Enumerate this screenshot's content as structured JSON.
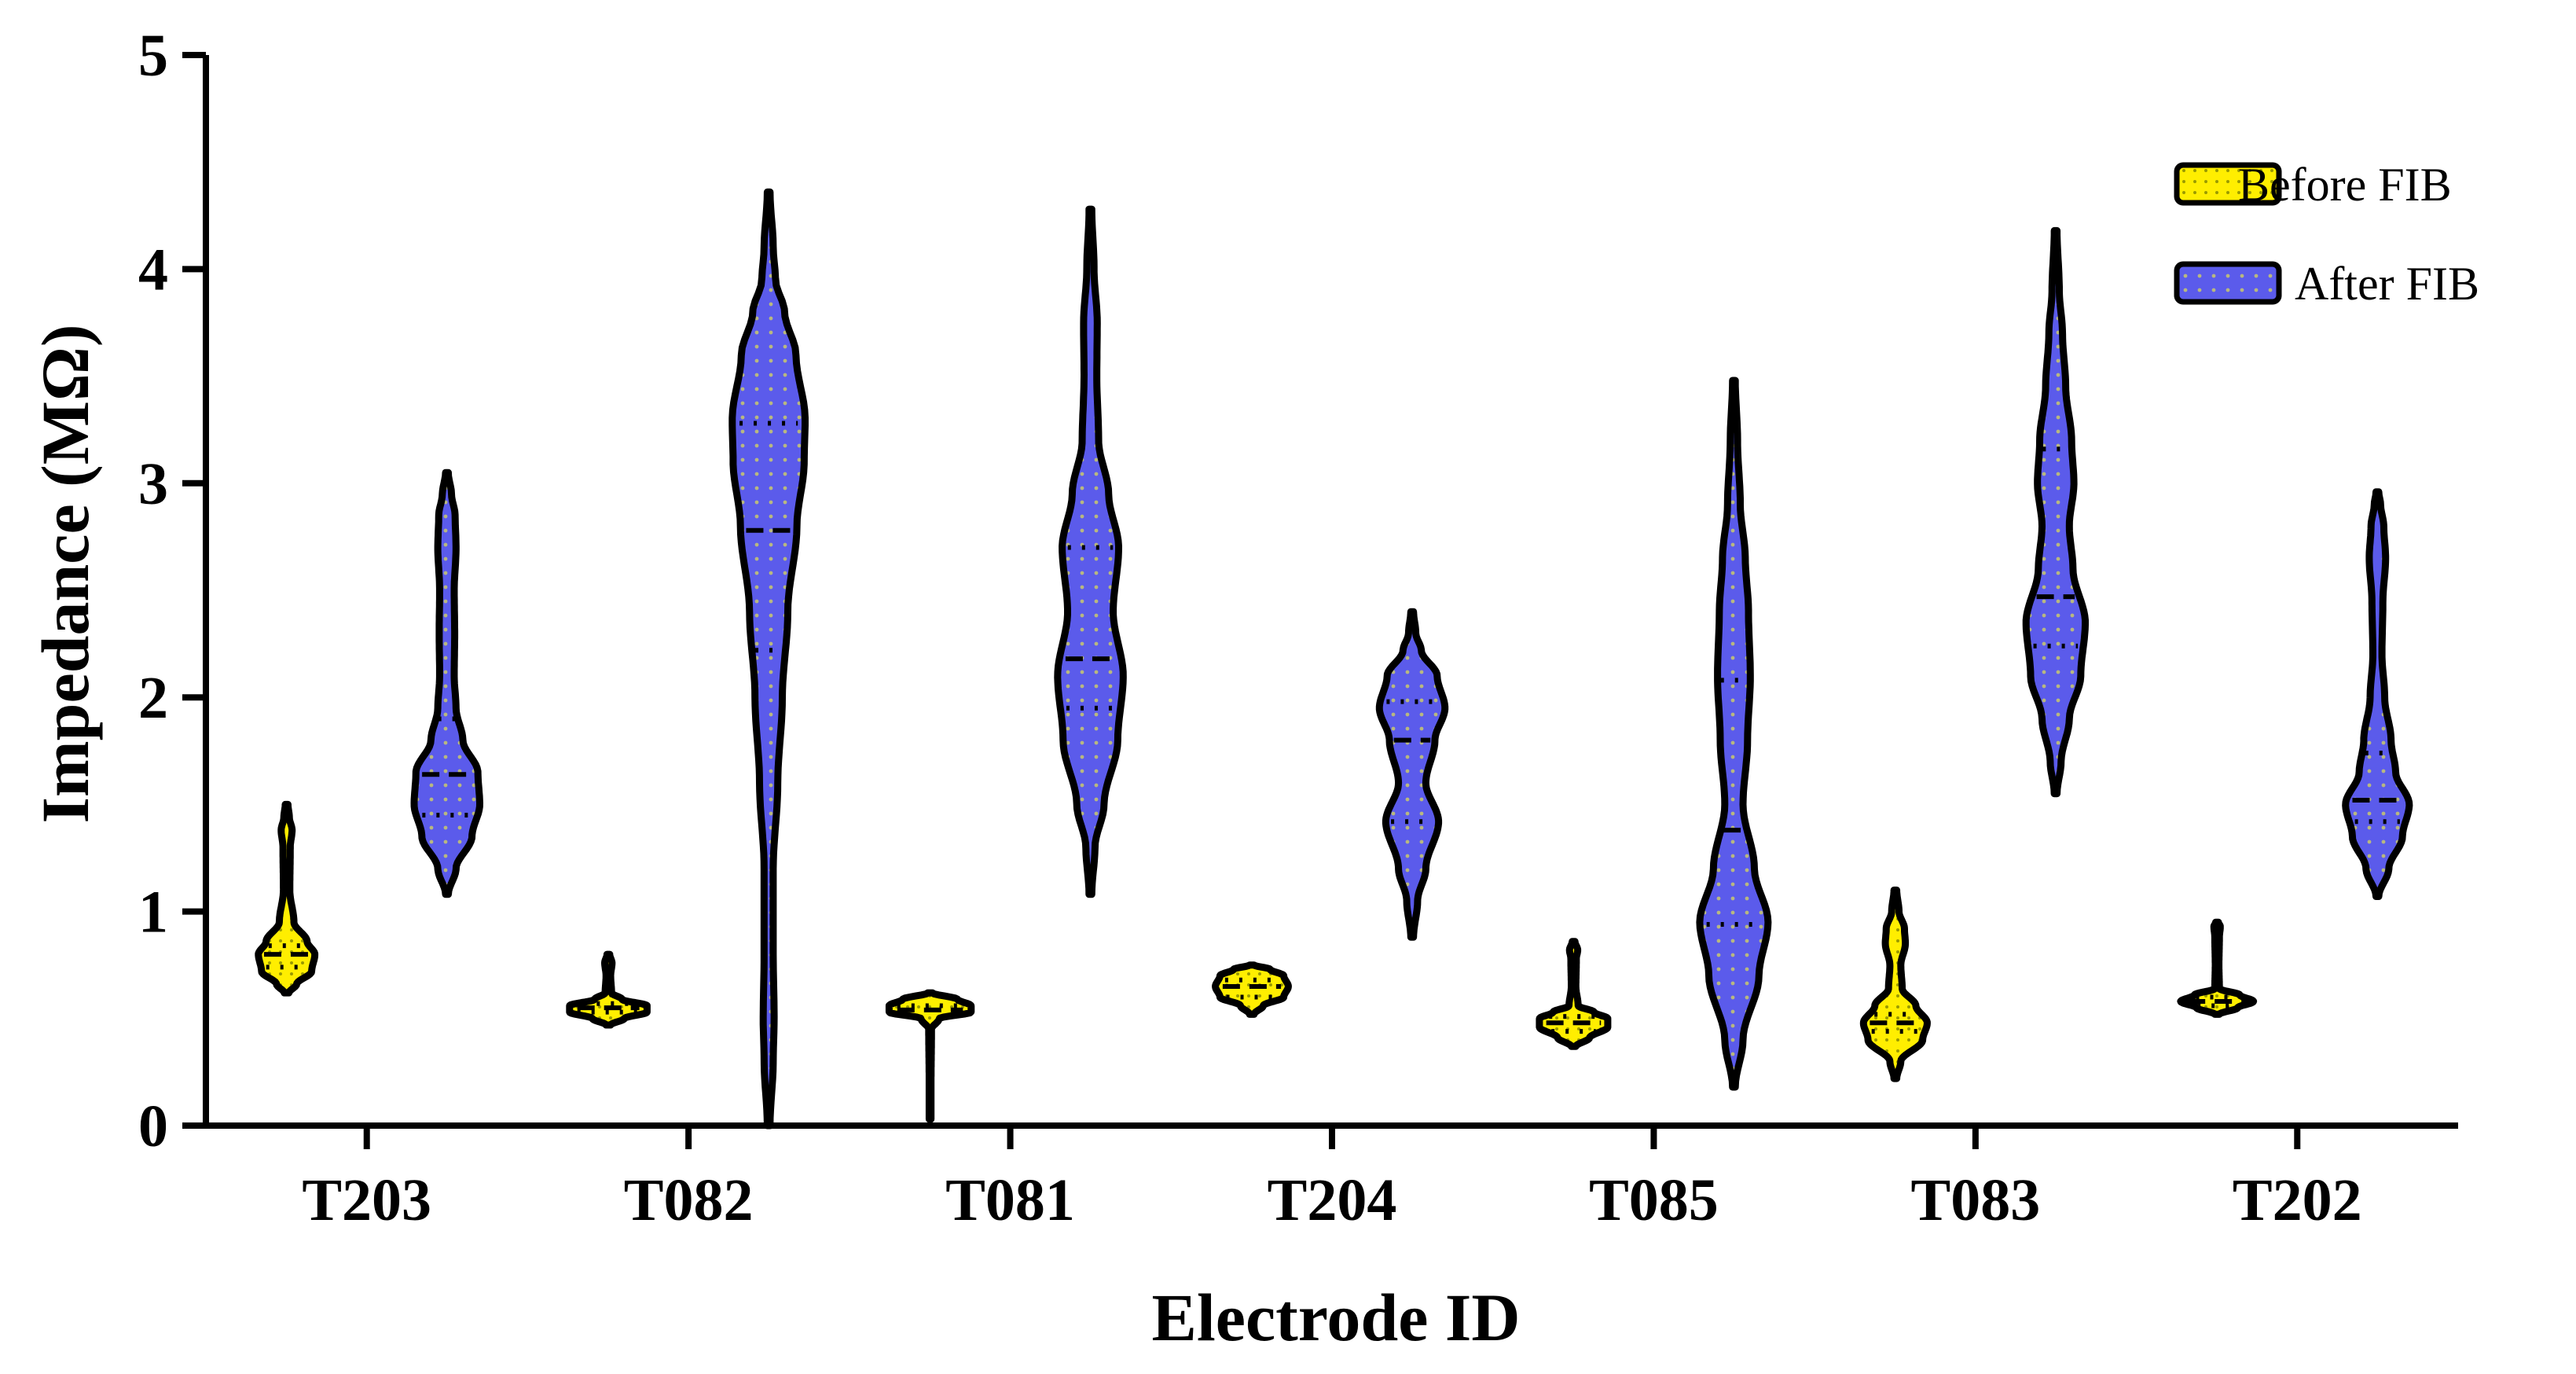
{
  "chart_data": {
    "type": "violin",
    "title": "",
    "xlabel": "Electrode ID",
    "ylabel": "Impedance (MΩ)",
    "ylim": [
      0,
      5
    ],
    "yticks": [
      0,
      1,
      2,
      3,
      4,
      5
    ],
    "grid": false,
    "legend_position": "top-right",
    "categories": [
      "T203",
      "T082",
      "T081",
      "T204",
      "T085",
      "T083",
      "T202"
    ],
    "series": [
      {
        "name": "Before FIB",
        "color": "#FFEE00",
        "violins": [
          {
            "min": 0.62,
            "max": 1.5,
            "q1": 0.74,
            "median": 0.8,
            "q3": 0.84,
            "profile": [
              [
                0.62,
                0.05
              ],
              [
                0.66,
                0.22
              ],
              [
                0.72,
                0.55
              ],
              [
                0.8,
                0.62
              ],
              [
                0.86,
                0.45
              ],
              [
                0.95,
                0.16
              ],
              [
                1.1,
                0.07
              ],
              [
                1.3,
                0.08
              ],
              [
                1.38,
                0.12
              ],
              [
                1.44,
                0.06
              ],
              [
                1.5,
                0.03
              ]
            ]
          },
          {
            "min": 0.47,
            "max": 0.8,
            "q1": 0.53,
            "median": 0.55,
            "q3": 0.57,
            "profile": [
              [
                0.47,
                0.05
              ],
              [
                0.5,
                0.35
              ],
              [
                0.53,
                0.85
              ],
              [
                0.56,
                0.85
              ],
              [
                0.59,
                0.3
              ],
              [
                0.62,
                0.07
              ],
              [
                0.7,
                0.05
              ],
              [
                0.76,
                0.08
              ],
              [
                0.8,
                0.03
              ]
            ]
          },
          {
            "min": 0.03,
            "max": 0.62,
            "q1": 0.46,
            "median": 0.54,
            "q3": 0.56,
            "profile": [
              [
                0.03,
                0.02
              ],
              [
                0.2,
                0.02
              ],
              [
                0.45,
                0.03
              ],
              [
                0.5,
                0.2
              ],
              [
                0.53,
                0.9
              ],
              [
                0.56,
                0.9
              ],
              [
                0.59,
                0.6
              ],
              [
                0.62,
                0.05
              ]
            ]
          },
          {
            "min": 0.52,
            "max": 0.75,
            "q1": 0.6,
            "median": 0.65,
            "q3": 0.68,
            "profile": [
              [
                0.52,
                0.05
              ],
              [
                0.56,
                0.25
              ],
              [
                0.6,
                0.7
              ],
              [
                0.65,
                0.8
              ],
              [
                0.7,
                0.7
              ],
              [
                0.73,
                0.4
              ],
              [
                0.75,
                0.05
              ]
            ]
          },
          {
            "min": 0.37,
            "max": 0.86,
            "q1": 0.44,
            "median": 0.48,
            "q3": 0.51,
            "profile": [
              [
                0.37,
                0.05
              ],
              [
                0.41,
                0.35
              ],
              [
                0.46,
                0.75
              ],
              [
                0.5,
                0.75
              ],
              [
                0.53,
                0.45
              ],
              [
                0.56,
                0.1
              ],
              [
                0.65,
                0.05
              ],
              [
                0.78,
                0.06
              ],
              [
                0.82,
                0.09
              ],
              [
                0.86,
                0.03
              ]
            ]
          },
          {
            "min": 0.22,
            "max": 1.1,
            "q1": 0.44,
            "median": 0.48,
            "q3": 0.52,
            "profile": [
              [
                0.22,
                0.03
              ],
              [
                0.3,
                0.12
              ],
              [
                0.4,
                0.6
              ],
              [
                0.48,
                0.7
              ],
              [
                0.56,
                0.45
              ],
              [
                0.64,
                0.15
              ],
              [
                0.75,
                0.12
              ],
              [
                0.85,
                0.22
              ],
              [
                0.92,
                0.2
              ],
              [
                1.0,
                0.08
              ],
              [
                1.1,
                0.03
              ]
            ]
          },
          {
            "min": 0.52,
            "max": 0.95,
            "q1": 0.56,
            "median": 0.58,
            "q3": 0.6,
            "profile": [
              [
                0.52,
                0.05
              ],
              [
                0.55,
                0.45
              ],
              [
                0.58,
                0.8
              ],
              [
                0.61,
                0.5
              ],
              [
                0.64,
                0.05
              ],
              [
                0.75,
                0.04
              ],
              [
                0.88,
                0.05
              ],
              [
                0.93,
                0.07
              ],
              [
                0.95,
                0.03
              ]
            ]
          }
        ]
      },
      {
        "name": "After FIB",
        "color": "#5B5BEB",
        "violins": [
          {
            "min": 1.08,
            "max": 3.05,
            "q1": 1.45,
            "median": 1.64,
            "q3": 1.9,
            "profile": [
              [
                1.08,
                0.03
              ],
              [
                1.2,
                0.2
              ],
              [
                1.35,
                0.55
              ],
              [
                1.5,
                0.72
              ],
              [
                1.65,
                0.68
              ],
              [
                1.8,
                0.35
              ],
              [
                1.95,
                0.2
              ],
              [
                2.1,
                0.16
              ],
              [
                2.3,
                0.17
              ],
              [
                2.5,
                0.16
              ],
              [
                2.7,
                0.2
              ],
              [
                2.85,
                0.18
              ],
              [
                2.95,
                0.1
              ],
              [
                3.05,
                0.03
              ]
            ]
          },
          {
            "min": 0.0,
            "max": 4.36,
            "q1": 2.22,
            "median": 2.78,
            "q3": 3.28,
            "profile": [
              [
                0.0,
                0.03
              ],
              [
                0.3,
                0.1
              ],
              [
                0.5,
                0.12
              ],
              [
                0.8,
                0.1
              ],
              [
                1.2,
                0.1
              ],
              [
                1.6,
                0.2
              ],
              [
                2.0,
                0.3
              ],
              [
                2.4,
                0.42
              ],
              [
                2.8,
                0.62
              ],
              [
                3.1,
                0.78
              ],
              [
                3.3,
                0.8
              ],
              [
                3.6,
                0.6
              ],
              [
                3.8,
                0.35
              ],
              [
                3.95,
                0.15
              ],
              [
                4.1,
                0.1
              ],
              [
                4.36,
                0.03
              ]
            ]
          },
          {
            "min": 1.08,
            "max": 4.28,
            "q1": 1.95,
            "median": 2.18,
            "q3": 2.7,
            "profile": [
              [
                1.08,
                0.03
              ],
              [
                1.3,
                0.1
              ],
              [
                1.5,
                0.3
              ],
              [
                1.8,
                0.6
              ],
              [
                2.1,
                0.72
              ],
              [
                2.4,
                0.5
              ],
              [
                2.7,
                0.62
              ],
              [
                2.95,
                0.4
              ],
              [
                3.2,
                0.18
              ],
              [
                3.5,
                0.14
              ],
              [
                3.75,
                0.15
              ],
              [
                4.0,
                0.08
              ],
              [
                4.28,
                0.03
              ]
            ]
          },
          {
            "min": 0.88,
            "max": 2.4,
            "q1": 1.42,
            "median": 1.8,
            "q3": 1.98,
            "profile": [
              [
                0.88,
                0.03
              ],
              [
                1.05,
                0.12
              ],
              [
                1.2,
                0.3
              ],
              [
                1.42,
                0.58
              ],
              [
                1.6,
                0.3
              ],
              [
                1.8,
                0.5
              ],
              [
                1.95,
                0.72
              ],
              [
                2.1,
                0.55
              ],
              [
                2.22,
                0.2
              ],
              [
                2.3,
                0.08
              ],
              [
                2.4,
                0.03
              ]
            ]
          },
          {
            "min": 0.18,
            "max": 3.48,
            "q1": 0.94,
            "median": 1.38,
            "q3": 2.08,
            "profile": [
              [
                0.18,
                0.03
              ],
              [
                0.4,
                0.2
              ],
              [
                0.7,
                0.55
              ],
              [
                0.95,
                0.75
              ],
              [
                1.2,
                0.45
              ],
              [
                1.5,
                0.2
              ],
              [
                1.8,
                0.3
              ],
              [
                2.1,
                0.36
              ],
              [
                2.4,
                0.32
              ],
              [
                2.65,
                0.25
              ],
              [
                2.9,
                0.14
              ],
              [
                3.2,
                0.08
              ],
              [
                3.48,
                0.03
              ]
            ]
          },
          {
            "min": 1.55,
            "max": 4.18,
            "q1": 2.24,
            "median": 2.47,
            "q3": 3.16,
            "profile": [
              [
                1.55,
                0.03
              ],
              [
                1.7,
                0.12
              ],
              [
                1.9,
                0.3
              ],
              [
                2.1,
                0.55
              ],
              [
                2.35,
                0.65
              ],
              [
                2.6,
                0.38
              ],
              [
                2.8,
                0.3
              ],
              [
                3.0,
                0.4
              ],
              [
                3.2,
                0.35
              ],
              [
                3.45,
                0.22
              ],
              [
                3.7,
                0.15
              ],
              [
                3.9,
                0.08
              ],
              [
                4.18,
                0.03
              ]
            ]
          },
          {
            "min": 1.07,
            "max": 2.96,
            "q1": 1.42,
            "median": 1.52,
            "q3": 1.74,
            "profile": [
              [
                1.07,
                0.03
              ],
              [
                1.2,
                0.25
              ],
              [
                1.35,
                0.55
              ],
              [
                1.5,
                0.7
              ],
              [
                1.65,
                0.4
              ],
              [
                1.8,
                0.3
              ],
              [
                2.0,
                0.16
              ],
              [
                2.2,
                0.1
              ],
              [
                2.45,
                0.12
              ],
              [
                2.65,
                0.18
              ],
              [
                2.8,
                0.14
              ],
              [
                2.9,
                0.07
              ],
              [
                2.96,
                0.03
              ]
            ]
          }
        ]
      }
    ]
  }
}
